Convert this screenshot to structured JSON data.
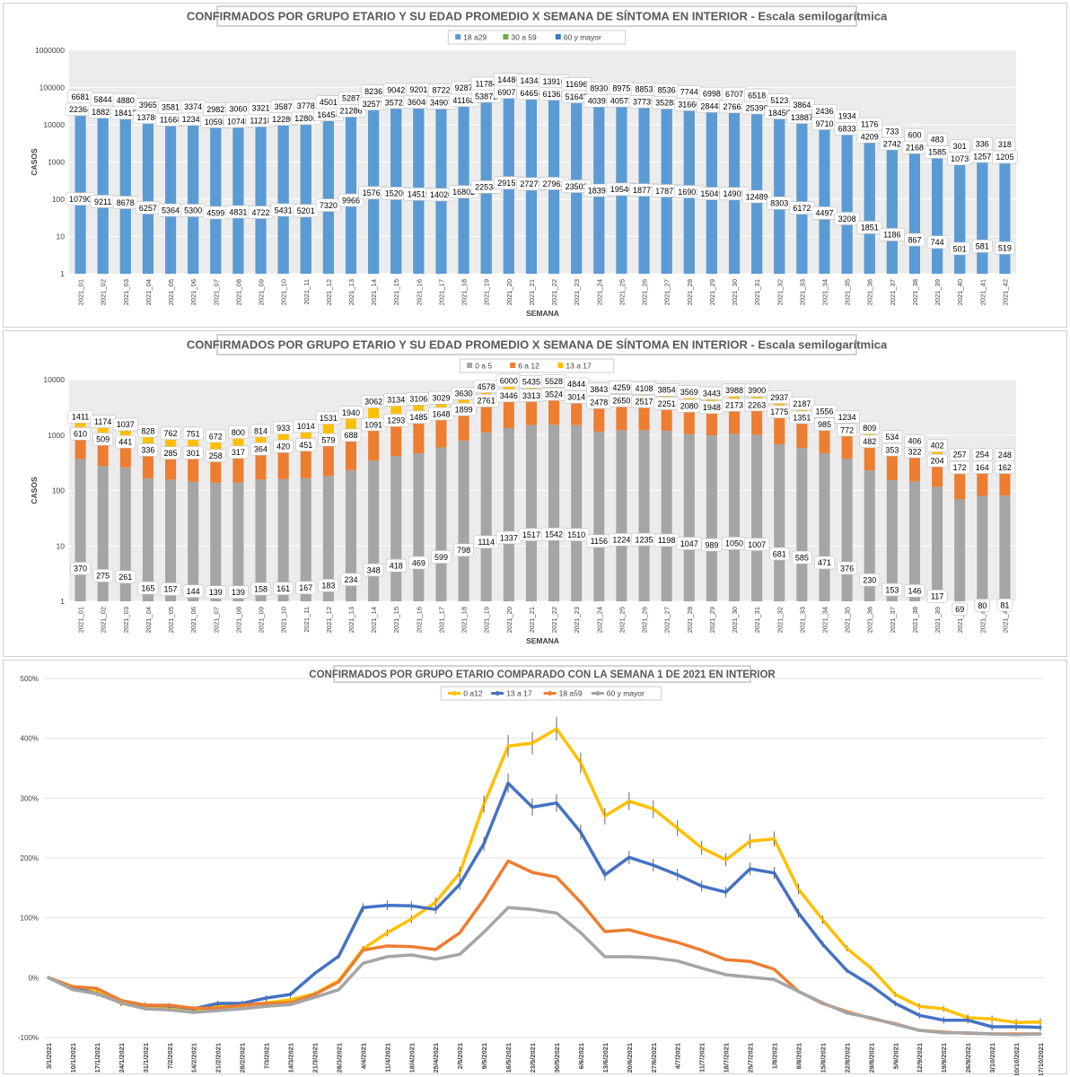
{
  "charts": [
    {
      "type": "bar",
      "stacked": true,
      "yscale": "log",
      "title": "CONFIRMADOS POR GRUPO ETARIO Y SU EDAD PROMEDIO X SEMANA DE SÍNTOMA EN INTERIOR - Escala semilogarítmica",
      "xlabel": "SEMANA",
      "ylabel": "CASOS",
      "ylim": [
        1,
        1000000
      ],
      "yticks": [
        "1",
        "10",
        "100",
        "1000",
        "10000",
        "100000",
        "1000000"
      ],
      "legend_position": "top",
      "categories": [
        "2021_01",
        "2021_02",
        "2021_03",
        "2021_04",
        "2021_05",
        "2021_06",
        "2021_07",
        "2021_08",
        "2021_09",
        "2021_10",
        "2021_11",
        "2021_12",
        "2021_13",
        "2021_14",
        "2021_15",
        "2021_16",
        "2021_17",
        "2021_18",
        "2021_19",
        "2021_20",
        "2021_21",
        "2021_22",
        "2021_23",
        "2021_24",
        "2021_25",
        "2021_26",
        "2021_27",
        "2021_28",
        "2021_29",
        "2021_30",
        "2021_31",
        "2021_32",
        "2021_33",
        "2021_34",
        "2021_35",
        "2021_36",
        "2021_37",
        "2021_38",
        "2021_39",
        "2021_40",
        "2021_41",
        "2021_42"
      ],
      "series": [
        {
          "name": "18 a29",
          "color": "#5b9bd5",
          "labeled": false,
          "values": [
            null,
            null,
            null,
            null,
            null,
            null,
            null,
            null,
            null,
            null,
            null,
            null,
            null,
            null,
            null,
            null,
            null,
            null,
            null,
            null,
            null,
            null,
            null,
            null,
            null,
            null,
            null,
            null,
            null,
            null,
            null,
            null,
            null,
            null,
            null,
            null,
            null,
            null,
            null,
            null,
            null,
            null
          ]
        },
        {
          "name": "30 a 59",
          "color": "#70ad47",
          "labeled": true,
          "values": [
            22364,
            18823,
            18412,
            13786,
            11668,
            12341,
            10598,
            10745,
            11218,
            12280,
            12806,
            16454,
            21286,
            32577,
            35721,
            36046,
            34907,
            41168,
            53872,
            69072,
            64658,
            61362,
            51643,
            40392,
            40573,
            37739,
            35283,
            31660,
            28443,
            27663,
            25390,
            18450,
            13887,
            9710,
            6833,
            4209,
            2742,
            2168,
            1585,
            1073,
            1257,
            1205
          ]
        },
        {
          "name": "60 y mayor",
          "color": "#3a7cc0",
          "labeled": true,
          "values": [
            6681,
            5844,
            4880,
            3965,
            3581,
            3374,
            2982,
            3060,
            3321,
            3587,
            3778,
            4501,
            5287,
            8236,
            9042,
            9201,
            8722,
            9287,
            11784,
            14486,
            14341,
            13916,
            11696,
            8930,
            8975,
            8853,
            8536,
            7744,
            6998,
            6707,
            6518,
            5123,
            3864,
            2436,
            1934,
            1176,
            733,
            600,
            483,
            301,
            336,
            318
          ]
        }
      ],
      "extra_labels": {
        "name": "edad promedio / base",
        "values": [
          10790,
          9211,
          8678,
          6257,
          5364,
          5300,
          4599,
          4831,
          4722,
          5431,
          5201,
          7320,
          9966,
          15761,
          15206,
          14519,
          14020,
          16802,
          22534,
          29151,
          27273,
          27962,
          23502,
          18391,
          19540,
          18777,
          17877,
          16902,
          15049,
          14905,
          12489,
          8303,
          6172,
          4497,
          3208,
          1851,
          1186,
          867,
          744,
          501,
          581,
          519
        ]
      }
    },
    {
      "type": "bar",
      "stacked": true,
      "yscale": "log",
      "title": "CONFIRMADOS POR GRUPO ETARIO Y SU EDAD PROMEDIO X SEMANA DE SÍNTOMA EN INTERIOR - Escala semilogarítmica",
      "xlabel": "SEMANA",
      "ylabel": "CASOS",
      "ylim": [
        1,
        10000
      ],
      "yticks": [
        "1",
        "10",
        "100",
        "1000",
        "10000"
      ],
      "legend_position": "top",
      "categories": [
        "2021_01",
        "2021_02",
        "2021_03",
        "2021_04",
        "2021_05",
        "2021_06",
        "2021_07",
        "2021_08",
        "2021_09",
        "2021_10",
        "2021_11",
        "2021_12",
        "2021_13",
        "2021_14",
        "2021_15",
        "2021_16",
        "2021_17",
        "2021_18",
        "2021_19",
        "2021_20",
        "2021_21",
        "2021_22",
        "2021_23",
        "2021_24",
        "2021_25",
        "2021_26",
        "2021_27",
        "2021_28",
        "2021_29",
        "2021_30",
        "2021_31",
        "2021_32",
        "2021_33",
        "2021_34",
        "2021_35",
        "2021_36",
        "2021_37",
        "2021_38",
        "2021_39",
        "2021_40",
        "2021_41",
        "2021_42"
      ],
      "series": [
        {
          "name": "0 a 5",
          "color": "#a5a5a5",
          "labeled": true,
          "values": [
            370,
            275,
            261,
            165,
            157,
            144,
            139,
            139,
            158,
            161,
            167,
            183,
            234,
            348,
            418,
            469,
            599,
            798,
            1114,
            1337,
            1517,
            1542,
            1510,
            1156,
            1224,
            1235,
            1198,
            1047,
            989,
            1050,
            1007,
            681,
            585,
            471,
            376,
            230,
            153,
            146,
            117,
            69,
            80,
            81
          ]
        },
        {
          "name": "6 a 12",
          "color": "#ed7d31",
          "labeled": true,
          "values": [
            610,
            509,
            441,
            336,
            285,
            301,
            258,
            317,
            364,
            420,
            451,
            579,
            688,
            1091,
            1293,
            1485,
            1648,
            1899,
            2761,
            3446,
            3313,
            3524,
            3014,
            2478,
            2650,
            2517,
            2251,
            2080,
            1948,
            2173,
            2263,
            1775,
            1351,
            985,
            772,
            482,
            353,
            322,
            204,
            172,
            164,
            162
          ]
        },
        {
          "name": "13 a 17",
          "color": "#ffc000",
          "labeled": true,
          "values": [
            1411,
            1174,
            1037,
            828,
            762,
            751,
            672,
            800,
            814,
            933,
            1014,
            1531,
            1940,
            3062,
            3134,
            3106,
            3029,
            3630,
            4578,
            6000,
            5435,
            5528,
            4844,
            3843,
            4259,
            4108,
            3854,
            3569,
            3443,
            3988,
            3900,
            2937,
            2187,
            1556,
            1234,
            809,
            534,
            406,
            402,
            257,
            254,
            248
          ]
        }
      ]
    },
    {
      "type": "line",
      "yscale": "linear",
      "title": "CONFIRMADOS POR GRUPO ETARIO COMPARADO CON LA SEMANA 1 DE 2021 EN INTERIOR",
      "ylim": [
        -100,
        500
      ],
      "yticks": [
        "-100%",
        "0%",
        "100%",
        "200%",
        "300%",
        "400%",
        "500%"
      ],
      "legend_position": "top",
      "x": [
        "3/1/2021",
        "10/1/2021",
        "17/1/2021",
        "24/1/2021",
        "31/1/2021",
        "7/2/2021",
        "14/2/2021",
        "21/2/2021",
        "28/2/2021",
        "7/3/2021",
        "14/3/2021",
        "21/3/2021",
        "28/3/2021",
        "4/4/2021",
        "11/4/2021",
        "18/4/2021",
        "25/4/2021",
        "2/5/2021",
        "9/5/2021",
        "16/5/2021",
        "23/5/2021",
        "30/5/2021",
        "6/6/2021",
        "13/6/2021",
        "20/6/2021",
        "27/6/2021",
        "4/7/2021",
        "11/7/2021",
        "18/7/2021",
        "25/7/2021",
        "1/8/2021",
        "8/8/2021",
        "15/8/2021",
        "22/8/2021",
        "29/8/2021",
        "5/9/2021",
        "12/9/2021",
        "19/9/2021",
        "26/9/2021",
        "3/10/2021",
        "10/10/2021",
        "17/10/2021"
      ],
      "series": [
        {
          "name": "0 a12",
          "color": "#ffc000",
          "errorbars": true,
          "values": [
            0,
            -17,
            -24,
            -43,
            -50,
            -50,
            -55,
            -48,
            -47,
            -42,
            -37,
            -27,
            -5,
            48,
            75,
            98,
            126,
            175,
            290,
            387,
            392,
            416,
            359,
            270,
            295,
            282,
            250,
            217,
            197,
            228,
            232,
            148,
            97,
            49,
            16,
            -28,
            -48,
            -52,
            -67,
            -69,
            -75,
            -74
          ]
        },
        {
          "name": "13 a 17",
          "color": "#4472c4",
          "errorbars": true,
          "values": [
            0,
            -17,
            -27,
            -41,
            -46,
            -47,
            -52,
            -43,
            -43,
            -34,
            -28,
            7,
            36,
            117,
            121,
            120,
            114,
            156,
            224,
            325,
            285,
            292,
            243,
            172,
            201,
            188,
            172,
            153,
            143,
            182,
            175,
            108,
            56,
            12,
            -13,
            -43,
            -63,
            -71,
            -71,
            -82,
            -82,
            -83
          ]
        },
        {
          "name": "18 a59",
          "color": "#ed7d31",
          "errorbars": false,
          "values": [
            0,
            -15,
            -18,
            -38,
            -46,
            -46,
            -51,
            -51,
            -46,
            -43,
            -42,
            -28,
            -7,
            46,
            53,
            52,
            47,
            75,
            131,
            195,
            176,
            168,
            126,
            77,
            80,
            69,
            59,
            46,
            30,
            27,
            14,
            -23,
            -43,
            -57,
            -68,
            -77,
            -88,
            -91,
            -93,
            -94,
            -94,
            -94
          ]
        },
        {
          "name": "60 y mayor",
          "color": "#a5a5a5",
          "errorbars": false,
          "values": [
            0,
            -20,
            -27,
            -42,
            -52,
            -54,
            -58,
            -55,
            -52,
            -48,
            -45,
            -33,
            -20,
            24,
            35,
            38,
            31,
            39,
            76,
            117,
            114,
            108,
            75,
            35,
            35,
            33,
            28,
            16,
            5,
            1,
            -3,
            -23,
            -42,
            -59,
            -67,
            -78,
            -88,
            -92,
            -92,
            -94,
            -95,
            -94
          ]
        }
      ]
    }
  ]
}
